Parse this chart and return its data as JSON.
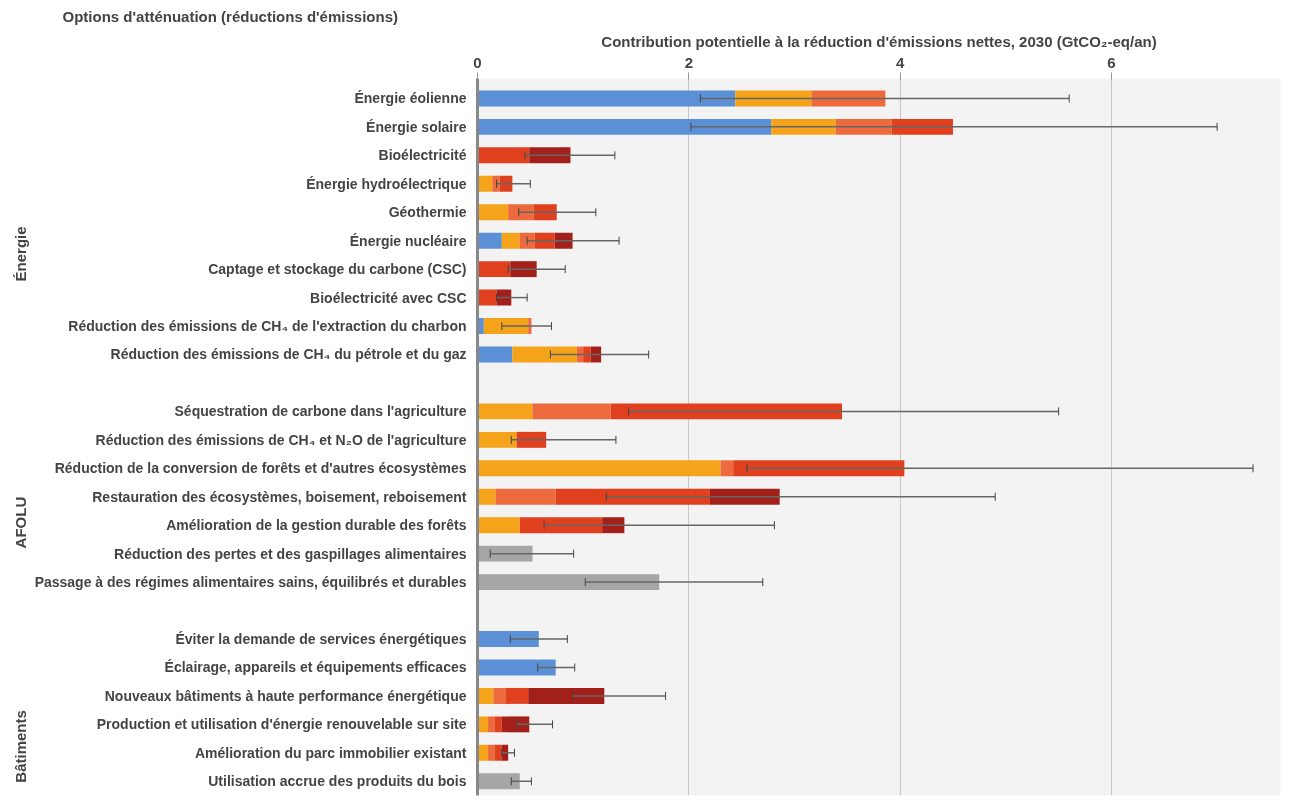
{
  "chart_data": {
    "type": "bar",
    "orientation": "horizontal",
    "stacked": true,
    "xlabel": "Contribution potentielle à la réduction d'émissions nettes, 2030 (GtCO₂-eq/an)",
    "ylabel": "Options d'atténuation (réductions d'émissions)",
    "annotations": [
      "Énergie",
      "AFOLU",
      "Bâtiments"
    ],
    "categories": [
      "Énergie éolienne",
      "Énergie solaire",
      "Bioélectricité",
      "Énergie hydroélectrique",
      "Géothermie",
      "Énergie nucléaire",
      "Captage et stockage du carbone (CSC)",
      "Bioélectricité avec CSC",
      "Réduction des émissions de CH₄ de l'extraction du charbon",
      "Réduction des émissions de CH₄ du pétrole et du gaz",
      null,
      "Séquestration de carbone dans l'agriculture",
      "Réduction des émissions de CH₄ et N₂O de l'agriculture",
      "Réduction de la conversion de forêts et d'autres écosystèmes",
      "Restauration des écosystèmes, boisement, reboisement",
      "Amélioration de la gestion durable des forêts",
      "Réduction des pertes et des gaspillages alimentaires",
      "Passage à des régimes alimentaires sains, équilibrés et durables",
      null,
      "Éviter la demande de services énergétiques",
      "Éclairage, appareils et équipements efficaces",
      "Nouveaux bâtiments à haute performance énergétique",
      "Production et utilisation d'énergie renouvelable sur site",
      "Amélioration du parc immobilier existant",
      "Utilisation accrue des produits du bois"
    ],
    "series": [
      {
        "color": "#5b8fd6",
        "values": [
          2.44,
          2.78,
          null,
          null,
          null,
          0.23,
          null,
          null,
          0.06,
          0.33,
          null,
          null,
          null,
          null,
          null,
          null,
          null,
          null,
          null,
          0.58,
          0.74,
          null,
          null,
          null,
          null
        ],
        "errors": [
          null,
          null,
          null,
          null,
          null,
          null,
          null,
          null,
          null,
          null,
          null,
          null,
          null,
          null,
          null,
          null,
          null,
          null,
          null,
          [
            0.31,
            0.85
          ],
          [
            0.57,
            0.92
          ],
          null,
          null,
          null,
          null
        ]
      },
      {
        "color": "#f5a31a",
        "values": [
          0.72,
          0.61,
          null,
          0.14,
          0.29,
          0.17,
          null,
          null,
          0.42,
          0.61,
          null,
          0.52,
          0.37,
          2.3,
          0.17,
          0.4,
          null,
          null,
          null,
          null,
          null,
          0.15,
          0.1,
          0.1,
          null
        ]
      },
      {
        "color": "#ec6a3c",
        "values": [
          0.7,
          0.53,
          null,
          0.07,
          0.24,
          0.14,
          null,
          null,
          0.03,
          0.06,
          null,
          0.74,
          null,
          0.12,
          0.57,
          null,
          null,
          null,
          null,
          null,
          null,
          0.12,
          0.06,
          0.06,
          null
        ],
        "errors": [
          [
            2.11,
            5.6
          ],
          null,
          null,
          null,
          null,
          null,
          null,
          null,
          [
            0.23,
            0.7
          ],
          null,
          null,
          null,
          null,
          null,
          null,
          null,
          null,
          null,
          null,
          null,
          null,
          null,
          null,
          null,
          null
        ]
      },
      {
        "color": "#e0401e",
        "values": [
          null,
          0.58,
          0.49,
          0.12,
          0.22,
          0.19,
          0.31,
          0.18,
          null,
          0.07,
          null,
          2.19,
          0.28,
          1.62,
          1.46,
          0.78,
          null,
          null,
          null,
          null,
          null,
          0.21,
          0.07,
          0.07,
          null
        ],
        "errors": [
          null,
          [
            2.02,
            7.0
          ],
          null,
          [
            0.18,
            0.5
          ],
          [
            0.39,
            1.12
          ],
          null,
          null,
          null,
          null,
          null,
          null,
          [
            1.43,
            5.5
          ],
          [
            0.32,
            1.31
          ],
          [
            2.55,
            7.34
          ],
          null,
          null,
          null,
          null,
          null,
          null,
          null,
          null,
          null,
          null,
          null
        ]
      },
      {
        "color": "#a3201a",
        "values": [
          null,
          null,
          0.39,
          null,
          null,
          0.17,
          0.25,
          0.14,
          null,
          0.1,
          null,
          null,
          null,
          null,
          0.66,
          0.21,
          null,
          null,
          null,
          null,
          null,
          0.72,
          0.26,
          0.06,
          null
        ],
        "errors": [
          null,
          null,
          [
            0.45,
            1.3
          ],
          null,
          null,
          [
            0.47,
            1.34
          ],
          [
            0.29,
            0.83
          ],
          [
            0.18,
            0.47
          ],
          null,
          [
            0.69,
            1.62
          ],
          null,
          null,
          null,
          null,
          [
            1.22,
            4.9
          ],
          [
            0.63,
            2.81
          ],
          null,
          null,
          null,
          null,
          null,
          [
            0.9,
            1.78
          ],
          [
            0.37,
            0.71
          ],
          [
            0.23,
            0.35
          ],
          null
        ]
      },
      {
        "color": "#a6a6a6",
        "values": [
          null,
          null,
          null,
          null,
          null,
          null,
          null,
          null,
          null,
          null,
          null,
          null,
          null,
          null,
          null,
          null,
          0.52,
          1.72,
          null,
          null,
          null,
          null,
          null,
          null,
          0.4
        ],
        "errors": [
          null,
          null,
          null,
          null,
          null,
          null,
          null,
          null,
          null,
          null,
          null,
          null,
          null,
          null,
          null,
          null,
          [
            0.12,
            0.91
          ],
          [
            1.02,
            2.7
          ],
          null,
          null,
          null,
          null,
          null,
          null,
          [
            0.32,
            0.51
          ]
        ]
      }
    ],
    "xlim": [
      0,
      7.6
    ],
    "xticks": [
      0,
      2,
      4,
      6
    ],
    "grid": "x"
  }
}
